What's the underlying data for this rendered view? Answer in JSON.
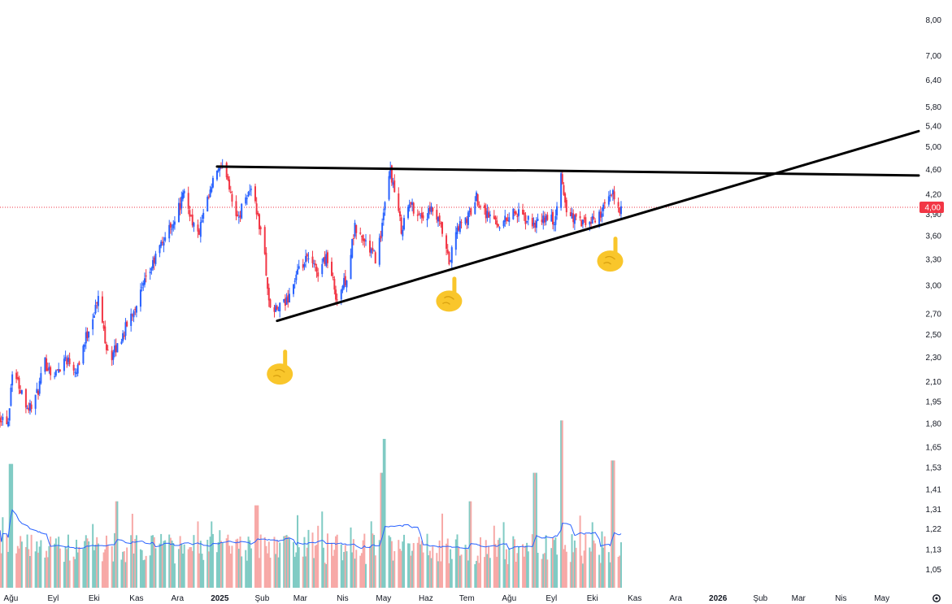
{
  "chart_data": {
    "type": "candlestick",
    "price_axis": {
      "scale": "log",
      "ticks": [
        "8,00",
        "7,00",
        "6,40",
        "5,80",
        "5,40",
        "5,00",
        "4,60",
        "4,20",
        "3,90",
        "3,60",
        "3,30",
        "3,00",
        "2,70",
        "2,50",
        "2,30",
        "2,10",
        "1,95",
        "1,80",
        "1,65",
        "1,53",
        "1,41",
        "1,31",
        "1,22",
        "1,13",
        "1,05"
      ],
      "tick_values": [
        8.0,
        7.0,
        6.4,
        5.8,
        5.4,
        5.0,
        4.6,
        4.2,
        3.9,
        3.6,
        3.3,
        3.0,
        2.7,
        2.5,
        2.3,
        2.1,
        1.95,
        1.8,
        1.65,
        1.53,
        1.41,
        1.31,
        1.22,
        1.13,
        1.05
      ],
      "ylim": [
        1.02,
        8.3
      ]
    },
    "time_axis": {
      "labels": [
        "Ağu",
        "Eyl",
        "Eki",
        "Kas",
        "Ara",
        "2025",
        "Şub",
        "Mar",
        "Nis",
        "May",
        "Haz",
        "Tem",
        "Ağu",
        "Eyl",
        "Eki",
        "Kas",
        "Ara",
        "2026",
        "Şub",
        "Mar",
        "Nis",
        "May"
      ],
      "bold": [
        "2025",
        "2026"
      ],
      "range": [
        "2024-07-24",
        "2026-05-28"
      ]
    },
    "last_price": {
      "value": 4.0,
      "label": "4,00",
      "color": "#f23645"
    },
    "colors": {
      "up": "#2962ff",
      "down": "#f23645",
      "volume_up": "#80cbc4",
      "volume_down": "#f7a9a7",
      "volume_ma": "#2962ff",
      "trendline": "#000000"
    },
    "price_path": [
      [
        "2024-07-24",
        1.85
      ],
      [
        "2024-07-30",
        1.82
      ],
      [
        "2024-08-02",
        2.2
      ],
      [
        "2024-08-08",
        2.05
      ],
      [
        "2024-08-14",
        1.9
      ],
      [
        "2024-08-20",
        2.0
      ],
      [
        "2024-08-26",
        2.25
      ],
      [
        "2024-09-02",
        2.15
      ],
      [
        "2024-09-10",
        2.3
      ],
      [
        "2024-09-18",
        2.2
      ],
      [
        "2024-09-28",
        2.6
      ],
      [
        "2024-10-04",
        2.85
      ],
      [
        "2024-10-10",
        2.4
      ],
      [
        "2024-10-14",
        2.3
      ],
      [
        "2024-10-22",
        2.5
      ],
      [
        "2024-10-30",
        2.75
      ],
      [
        "2024-11-08",
        3.05
      ],
      [
        "2024-11-18",
        3.45
      ],
      [
        "2024-11-28",
        3.8
      ],
      [
        "2024-12-06",
        4.2
      ],
      [
        "2024-12-12",
        3.8
      ],
      [
        "2024-12-16",
        3.6
      ],
      [
        "2024-12-22",
        4.0
      ],
      [
        "2024-12-30",
        4.6
      ],
      [
        "2025-01-06",
        4.55
      ],
      [
        "2025-01-14",
        3.8
      ],
      [
        "2025-01-20",
        4.2
      ],
      [
        "2025-01-26",
        4.3
      ],
      [
        "2025-01-28",
        3.95
      ],
      [
        "2025-02-03",
        3.35
      ],
      [
        "2025-02-06",
        2.8
      ],
      [
        "2025-02-10",
        2.72
      ],
      [
        "2025-02-18",
        2.8
      ],
      [
        "2025-02-26",
        3.1
      ],
      [
        "2025-03-06",
        3.3
      ],
      [
        "2025-03-14",
        3.15
      ],
      [
        "2025-03-20",
        3.35
      ],
      [
        "2025-03-28",
        2.85
      ],
      [
        "2025-04-04",
        3.1
      ],
      [
        "2025-04-10",
        3.7
      ],
      [
        "2025-04-18",
        3.5
      ],
      [
        "2025-04-26",
        3.3
      ],
      [
        "2025-05-02",
        4.0
      ],
      [
        "2025-05-06",
        4.6
      ],
      [
        "2025-05-10",
        4.1
      ],
      [
        "2025-05-14",
        3.7
      ],
      [
        "2025-05-20",
        4.05
      ],
      [
        "2025-05-30",
        3.85
      ],
      [
        "2025-06-06",
        3.95
      ],
      [
        "2025-06-12",
        3.7
      ],
      [
        "2025-06-18",
        3.25
      ],
      [
        "2025-06-24",
        3.7
      ],
      [
        "2025-07-02",
        3.85
      ],
      [
        "2025-07-08",
        4.15
      ],
      [
        "2025-07-16",
        3.9
      ],
      [
        "2025-07-26",
        3.75
      ],
      [
        "2025-08-04",
        3.95
      ],
      [
        "2025-08-14",
        3.8
      ],
      [
        "2025-08-22",
        3.75
      ],
      [
        "2025-08-28",
        3.85
      ],
      [
        "2025-09-04",
        3.8
      ],
      [
        "2025-09-08",
        4.5
      ],
      [
        "2025-09-12",
        3.95
      ],
      [
        "2025-09-20",
        3.8
      ],
      [
        "2025-09-28",
        3.75
      ],
      [
        "2025-10-04",
        3.85
      ],
      [
        "2025-10-10",
        4.0
      ],
      [
        "2025-10-16",
        4.2
      ],
      [
        "2025-10-20",
        4.0
      ],
      [
        "2025-10-22",
        4.0
      ]
    ],
    "volume_peaks": [
      [
        "2024-08-01",
        1.55
      ],
      [
        "2024-10-18",
        1.35
      ],
      [
        "2025-01-28",
        1.33
      ],
      [
        "2025-03-16",
        1.3
      ],
      [
        "2025-04-30",
        1.5
      ],
      [
        "2025-05-02",
        1.7
      ],
      [
        "2025-06-14",
        1.29
      ],
      [
        "2025-07-04",
        1.35
      ],
      [
        "2025-08-20",
        1.5
      ],
      [
        "2025-09-08",
        1.82
      ],
      [
        "2025-10-16",
        1.57
      ]
    ],
    "trendlines": [
      {
        "name": "resistance",
        "from": [
          "2024-12-30",
          4.65
        ],
        "to": [
          "2026-05-28",
          4.5
        ]
      },
      {
        "name": "support",
        "from": [
          "2025-02-12",
          2.63
        ],
        "to": [
          "2026-05-28",
          5.3
        ]
      }
    ],
    "annotations": [
      {
        "glyph": "☝",
        "date": "2025-02-14",
        "price": 2.2
      },
      {
        "glyph": "☝",
        "date": "2025-06-18",
        "price": 2.88
      },
      {
        "glyph": "☝",
        "date": "2025-10-14",
        "price": 3.34
      }
    ]
  },
  "icons": {
    "settings": "gear-icon"
  }
}
